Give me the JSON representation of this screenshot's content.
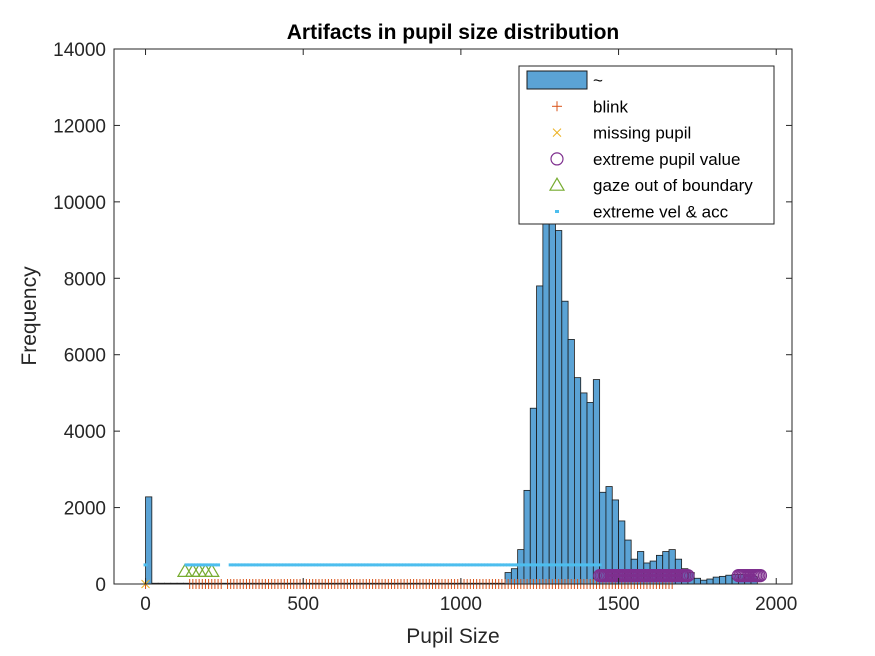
{
  "chart_data": {
    "type": "bar",
    "title": "Artifacts in pupil size distribution",
    "xlabel": "Pupil Size",
    "ylabel": "Frequency",
    "xlim": [
      -100,
      2050
    ],
    "ylim": [
      0,
      14000
    ],
    "xticks": [
      0,
      500,
      1000,
      1500,
      2000
    ],
    "yticks": [
      0,
      2000,
      4000,
      6000,
      8000,
      10000,
      12000,
      14000
    ],
    "grid": false,
    "legend_location": "top-right",
    "histogram": {
      "name": "~",
      "color": "#5BA3D5",
      "edge_color": "#1a1a1a",
      "bin_width": 20,
      "bins": [
        {
          "start": 0,
          "count": 2280
        },
        {
          "start": 20,
          "count": 20
        },
        {
          "start": 40,
          "count": 20
        },
        {
          "start": 60,
          "count": 20
        },
        {
          "start": 80,
          "count": 20
        },
        {
          "start": 100,
          "count": 20
        },
        {
          "start": 120,
          "count": 20
        },
        {
          "start": 140,
          "count": 20
        },
        {
          "start": 160,
          "count": 20
        },
        {
          "start": 180,
          "count": 20
        },
        {
          "start": 200,
          "count": 20
        },
        {
          "start": 220,
          "count": 20
        },
        {
          "start": 240,
          "count": 20
        },
        {
          "start": 260,
          "count": 20
        },
        {
          "start": 280,
          "count": 20
        },
        {
          "start": 300,
          "count": 20
        },
        {
          "start": 320,
          "count": 20
        },
        {
          "start": 340,
          "count": 20
        },
        {
          "start": 360,
          "count": 20
        },
        {
          "start": 380,
          "count": 20
        },
        {
          "start": 400,
          "count": 20
        },
        {
          "start": 420,
          "count": 20
        },
        {
          "start": 440,
          "count": 20
        },
        {
          "start": 460,
          "count": 20
        },
        {
          "start": 480,
          "count": 20
        },
        {
          "start": 500,
          "count": 20
        },
        {
          "start": 520,
          "count": 20
        },
        {
          "start": 540,
          "count": 20
        },
        {
          "start": 560,
          "count": 20
        },
        {
          "start": 580,
          "count": 20
        },
        {
          "start": 600,
          "count": 20
        },
        {
          "start": 620,
          "count": 20
        },
        {
          "start": 640,
          "count": 20
        },
        {
          "start": 660,
          "count": 20
        },
        {
          "start": 680,
          "count": 20
        },
        {
          "start": 700,
          "count": 20
        },
        {
          "start": 720,
          "count": 20
        },
        {
          "start": 740,
          "count": 20
        },
        {
          "start": 760,
          "count": 20
        },
        {
          "start": 780,
          "count": 20
        },
        {
          "start": 800,
          "count": 20
        },
        {
          "start": 820,
          "count": 20
        },
        {
          "start": 840,
          "count": 20
        },
        {
          "start": 860,
          "count": 20
        },
        {
          "start": 880,
          "count": 20
        },
        {
          "start": 900,
          "count": 20
        },
        {
          "start": 920,
          "count": 20
        },
        {
          "start": 940,
          "count": 20
        },
        {
          "start": 960,
          "count": 20
        },
        {
          "start": 980,
          "count": 20
        },
        {
          "start": 1000,
          "count": 20
        },
        {
          "start": 1020,
          "count": 20
        },
        {
          "start": 1040,
          "count": 20
        },
        {
          "start": 1060,
          "count": 20
        },
        {
          "start": 1080,
          "count": 20
        },
        {
          "start": 1100,
          "count": 20
        },
        {
          "start": 1120,
          "count": 20
        },
        {
          "start": 1140,
          "count": 300
        },
        {
          "start": 1160,
          "count": 400
        },
        {
          "start": 1180,
          "count": 900
        },
        {
          "start": 1200,
          "count": 2450
        },
        {
          "start": 1220,
          "count": 4600
        },
        {
          "start": 1240,
          "count": 7800
        },
        {
          "start": 1260,
          "count": 9500
        },
        {
          "start": 1280,
          "count": 9800
        },
        {
          "start": 1300,
          "count": 9250
        },
        {
          "start": 1320,
          "count": 7400
        },
        {
          "start": 1340,
          "count": 6400
        },
        {
          "start": 1360,
          "count": 5400
        },
        {
          "start": 1380,
          "count": 5000
        },
        {
          "start": 1400,
          "count": 4750
        },
        {
          "start": 1420,
          "count": 5350
        },
        {
          "start": 1440,
          "count": 2400
        },
        {
          "start": 1460,
          "count": 2550
        },
        {
          "start": 1480,
          "count": 2200
        },
        {
          "start": 1500,
          "count": 1650
        },
        {
          "start": 1520,
          "count": 1150
        },
        {
          "start": 1540,
          "count": 650
        },
        {
          "start": 1560,
          "count": 850
        },
        {
          "start": 1580,
          "count": 550
        },
        {
          "start": 1600,
          "count": 600
        },
        {
          "start": 1620,
          "count": 750
        },
        {
          "start": 1640,
          "count": 850
        },
        {
          "start": 1660,
          "count": 900
        },
        {
          "start": 1680,
          "count": 650
        },
        {
          "start": 1700,
          "count": 400
        },
        {
          "start": 1720,
          "count": 300
        },
        {
          "start": 1740,
          "count": 150
        },
        {
          "start": 1760,
          "count": 100
        },
        {
          "start": 1780,
          "count": 130
        },
        {
          "start": 1800,
          "count": 180
        },
        {
          "start": 1820,
          "count": 200
        },
        {
          "start": 1840,
          "count": 230
        },
        {
          "start": 1860,
          "count": 250
        },
        {
          "start": 1880,
          "count": 250
        },
        {
          "start": 1900,
          "count": 250
        },
        {
          "start": 1920,
          "count": 200
        }
      ]
    },
    "markers": [
      {
        "name": "blink",
        "symbol": "plus",
        "color": "#D95319",
        "y": 0,
        "x": [
          0,
          140,
          150,
          160,
          170,
          180,
          190,
          200,
          210,
          220,
          230,
          240,
          260,
          270,
          280,
          290,
          300,
          310,
          320,
          330,
          340,
          350,
          360,
          370,
          380,
          390,
          400,
          410,
          420,
          430,
          440,
          450,
          460,
          470,
          480,
          490,
          500,
          510,
          520,
          530,
          540,
          550,
          560,
          570,
          580,
          590,
          600,
          610,
          620,
          630,
          640,
          650,
          660,
          670,
          680,
          690,
          700,
          710,
          720,
          730,
          740,
          750,
          760,
          770,
          780,
          790,
          800,
          810,
          820,
          830,
          840,
          850,
          860,
          870,
          880,
          890,
          900,
          910,
          920,
          930,
          940,
          950,
          960,
          970,
          980,
          990,
          1000,
          1010,
          1020,
          1030,
          1040,
          1050,
          1060,
          1070,
          1080,
          1090,
          1100,
          1110,
          1120,
          1130,
          1140,
          1150,
          1160,
          1170,
          1180,
          1190,
          1200,
          1210,
          1220,
          1230,
          1240,
          1250,
          1260,
          1270,
          1280,
          1290,
          1300,
          1310,
          1320,
          1330,
          1340,
          1350,
          1360,
          1370,
          1380,
          1390,
          1400,
          1410,
          1420,
          1430,
          1440,
          1450,
          1460,
          1470,
          1480,
          1490,
          1500,
          1510,
          1520,
          1530,
          1540,
          1550,
          1560,
          1570,
          1580,
          1590,
          1600,
          1610,
          1620,
          1630,
          1640,
          1650,
          1660,
          1670
        ]
      },
      {
        "name": "missing pupil",
        "symbol": "cross",
        "color": "#EDB120",
        "y": 0,
        "x": [
          0
        ]
      },
      {
        "name": "extreme pupil value",
        "symbol": "circle",
        "color": "#7E2F8E",
        "y": 220,
        "x": [
          1440,
          1445,
          1450,
          1455,
          1460,
          1465,
          1470,
          1475,
          1480,
          1485,
          1490,
          1495,
          1500,
          1505,
          1510,
          1515,
          1520,
          1525,
          1530,
          1535,
          1540,
          1545,
          1550,
          1555,
          1560,
          1565,
          1570,
          1575,
          1580,
          1585,
          1590,
          1595,
          1600,
          1605,
          1610,
          1615,
          1620,
          1625,
          1630,
          1635,
          1640,
          1645,
          1650,
          1655,
          1660,
          1665,
          1670,
          1675,
          1680,
          1685,
          1690,
          1695,
          1700,
          1705,
          1710,
          1715,
          1720,
          1880,
          1885,
          1890,
          1895,
          1900,
          1905,
          1910,
          1915,
          1920,
          1925,
          1930,
          1935,
          1940,
          1945,
          1950
        ]
      },
      {
        "name": "gaze out of boundary",
        "symbol": "triangle",
        "color": "#77AC30",
        "y": 330,
        "x": [
          125,
          150,
          170,
          190,
          210
        ]
      },
      {
        "name": "extreme vel & acc",
        "symbol": "point",
        "color": "#4DBEEE",
        "y": 500,
        "x": [
          0,
          130,
          140,
          150,
          160,
          170,
          180,
          190,
          200,
          210,
          220,
          230,
          270,
          280,
          290,
          300,
          310,
          320,
          330,
          340,
          350,
          360,
          370,
          380,
          390,
          400,
          410,
          420,
          430,
          440,
          450,
          460,
          470,
          480,
          490,
          500,
          510,
          520,
          530,
          540,
          550,
          560,
          570,
          580,
          590,
          600,
          610,
          620,
          630,
          640,
          650,
          660,
          670,
          680,
          690,
          700,
          710,
          720,
          730,
          740,
          750,
          760,
          770,
          780,
          790,
          800,
          810,
          820,
          830,
          840,
          850,
          860,
          870,
          880,
          890,
          900,
          910,
          920,
          930,
          940,
          950,
          960,
          970,
          980,
          990,
          1000,
          1010,
          1020,
          1030,
          1040,
          1050,
          1060,
          1070,
          1080,
          1090,
          1100,
          1110,
          1120,
          1130,
          1140,
          1150,
          1160,
          1170,
          1180,
          1190,
          1200,
          1210,
          1220,
          1230,
          1240,
          1250,
          1260,
          1270,
          1280,
          1290,
          1300,
          1310,
          1320,
          1330,
          1340,
          1350,
          1360,
          1370,
          1380,
          1390,
          1400,
          1410,
          1420,
          1430,
          1440
        ]
      }
    ]
  }
}
